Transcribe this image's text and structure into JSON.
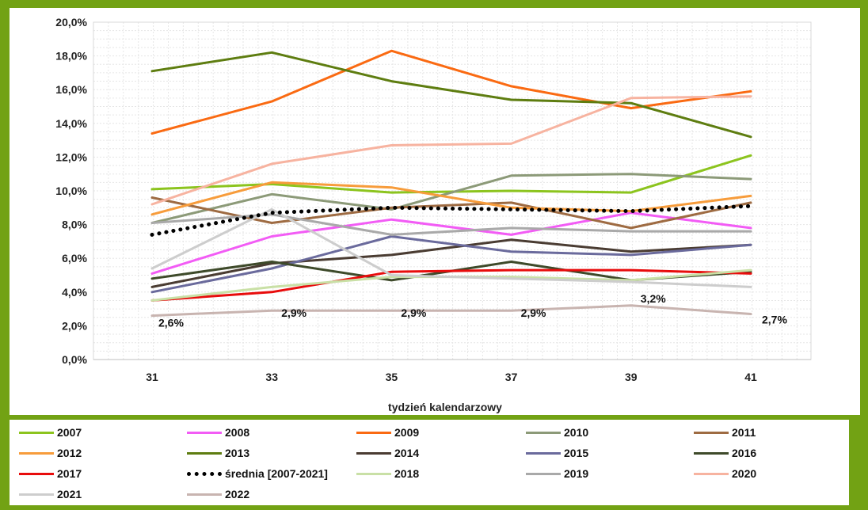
{
  "chart_data": {
    "type": "line",
    "title": "",
    "xlabel": "tydzień kalendarzowy",
    "ylabel": "",
    "x": [
      31,
      33,
      35,
      37,
      39,
      41
    ],
    "ylim": [
      0,
      20
    ],
    "y_ticks": [
      "0,0%",
      "2,0%",
      "4,0%",
      "6,0%",
      "8,0%",
      "10,0%",
      "12,0%",
      "14,0%",
      "16,0%",
      "18,0%",
      "20,0%"
    ],
    "grid": true,
    "legend_position": "bottom",
    "series": [
      {
        "name": "2007",
        "color": "#8cc41e",
        "values": [
          10.1,
          10.4,
          9.9,
          10.0,
          9.9,
          12.1
        ]
      },
      {
        "name": "2008",
        "color": "#f25cf5",
        "values": [
          5.1,
          7.3,
          8.3,
          7.4,
          8.7,
          7.8
        ]
      },
      {
        "name": "2009",
        "color": "#fa6a12",
        "values": [
          13.4,
          15.3,
          18.3,
          16.2,
          14.9,
          15.9
        ]
      },
      {
        "name": "2010",
        "color": "#8c9a78",
        "values": [
          8.1,
          9.8,
          8.9,
          10.9,
          11.0,
          10.7
        ]
      },
      {
        "name": "2011",
        "color": "#9e6b42",
        "values": [
          9.6,
          8.1,
          9.0,
          9.3,
          7.8,
          9.3
        ]
      },
      {
        "name": "2012",
        "color": "#f79c3b",
        "values": [
          8.6,
          10.5,
          10.2,
          9.0,
          8.8,
          9.7
        ]
      },
      {
        "name": "2013",
        "color": "#5e7d10",
        "values": [
          17.1,
          18.2,
          16.5,
          15.4,
          15.2,
          13.2
        ]
      },
      {
        "name": "2014",
        "color": "#4a3c32",
        "values": [
          4.3,
          5.7,
          6.2,
          7.1,
          6.4,
          6.8
        ]
      },
      {
        "name": "2015",
        "color": "#6a6a9c",
        "values": [
          4.0,
          5.4,
          7.3,
          6.4,
          6.2,
          6.8
        ]
      },
      {
        "name": "2016",
        "color": "#3e4a2a",
        "values": [
          4.8,
          5.8,
          4.7,
          5.8,
          4.7,
          5.2
        ]
      },
      {
        "name": "2017",
        "color": "#e80c0c",
        "values": [
          3.5,
          4.0,
          5.2,
          5.3,
          5.3,
          5.1
        ]
      },
      {
        "name": "średnia [2007-2021]",
        "color": "#000000",
        "dotted": true,
        "values": [
          7.4,
          8.7,
          9.0,
          8.9,
          8.8,
          9.1
        ]
      },
      {
        "name": "2018",
        "color": "#c9e0a6",
        "values": [
          3.5,
          4.3,
          4.9,
          4.9,
          4.7,
          5.3
        ]
      },
      {
        "name": "2019",
        "color": "#a9a9a9",
        "values": [
          8.1,
          8.6,
          7.4,
          7.8,
          7.6,
          7.6
        ]
      },
      {
        "name": "2020",
        "color": "#f7b3a0",
        "values": [
          9.2,
          11.6,
          12.7,
          12.8,
          15.5,
          15.6
        ]
      },
      {
        "name": "2021",
        "color": "#cdcdcd",
        "values": [
          5.4,
          8.9,
          5.0,
          4.8,
          4.6,
          4.3
        ]
      },
      {
        "name": "2022",
        "color": "#c8b4b0",
        "values": [
          2.6,
          2.9,
          2.9,
          2.9,
          3.2,
          2.7
        ]
      }
    ],
    "annotations": [
      "2,6%",
      "2,9%",
      "2,9%",
      "2,9%",
      "3,2%",
      "2,7%"
    ]
  }
}
